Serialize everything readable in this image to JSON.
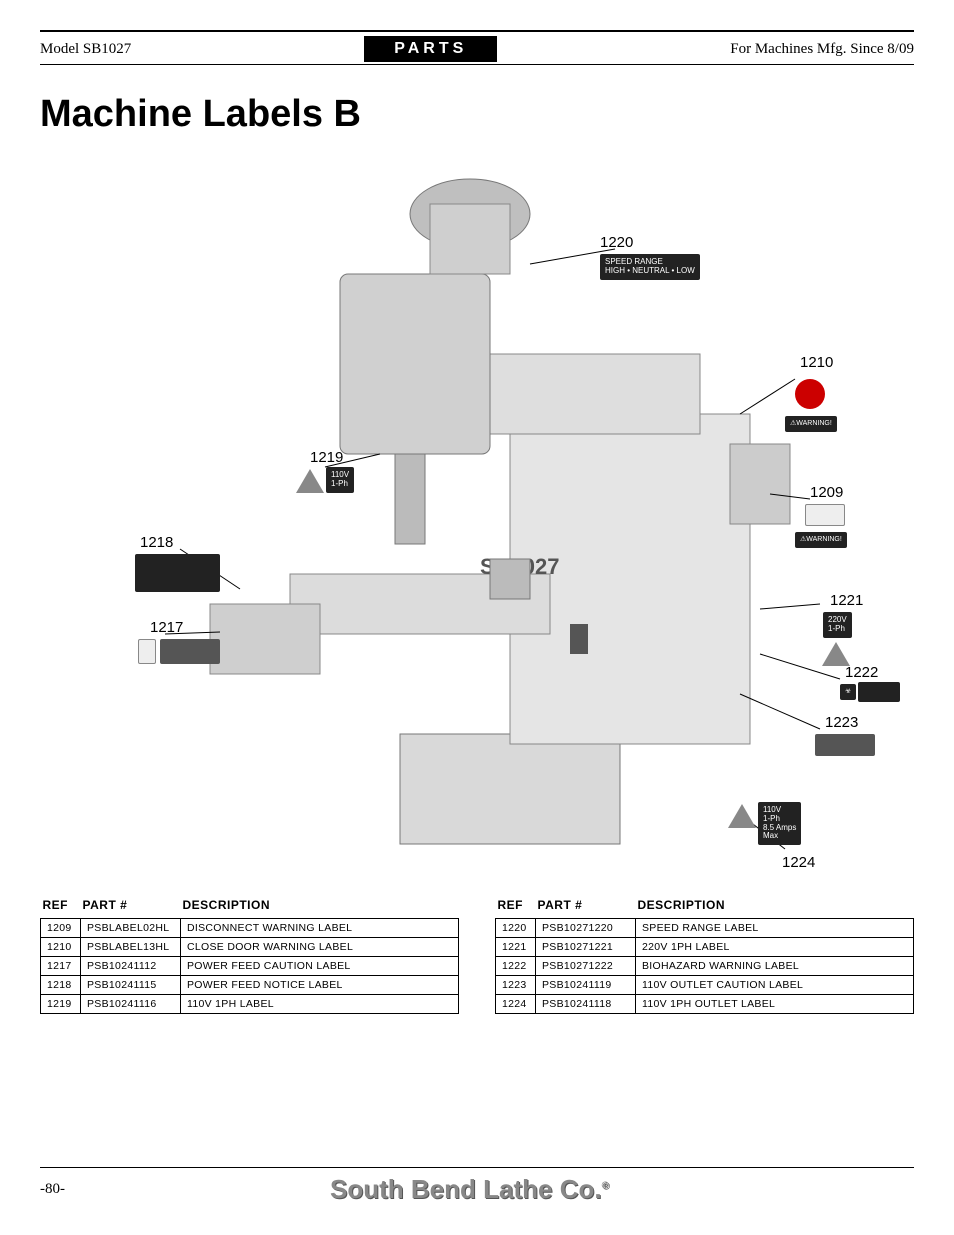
{
  "header": {
    "left": "Model SB1027",
    "center": "PARTS",
    "right": "For Machines Mfg. Since 8/09"
  },
  "title": "Machine Labels B",
  "callouts": {
    "c1220": "1220",
    "c1210": "1210",
    "c1219": "1219",
    "c1209": "1209",
    "c1218": "1218",
    "c1217": "1217",
    "c1221": "1221",
    "c1222": "1222",
    "c1223": "1223",
    "c1224": "1224",
    "machine_model": "SB1027"
  },
  "badges": {
    "b1220": "SPEED RANGE\nHIGH • NEUTRAL • LOW",
    "b1219": "110V\n1-Ph",
    "b1221": "220V\n1-Ph",
    "b1224": "110V\n1-Ph\n8.5 Amps\nMax",
    "warning": "⚠WARNING!"
  },
  "tables": {
    "headers": {
      "ref": "REF",
      "part": "PART #",
      "desc": "DESCRIPTION"
    },
    "left": [
      {
        "ref": "1209",
        "part": "PSBLABEL02HL",
        "desc": "DISCONNECT WARNING LABEL"
      },
      {
        "ref": "1210",
        "part": "PSBLABEL13HL",
        "desc": "CLOSE DOOR WARNING LABEL"
      },
      {
        "ref": "1217",
        "part": "PSB10241112",
        "desc": "POWER FEED CAUTION LABEL"
      },
      {
        "ref": "1218",
        "part": "PSB10241115",
        "desc": "POWER FEED NOTICE LABEL"
      },
      {
        "ref": "1219",
        "part": "PSB10241116",
        "desc": "110V 1PH LABEL"
      }
    ],
    "right": [
      {
        "ref": "1220",
        "part": "PSB10271220",
        "desc": "SPEED RANGE LABEL"
      },
      {
        "ref": "1221",
        "part": "PSB10271221",
        "desc": "220V 1PH LABEL"
      },
      {
        "ref": "1222",
        "part": "PSB10271222",
        "desc": "BIOHAZARD WARNING LABEL"
      },
      {
        "ref": "1223",
        "part": "PSB10241119",
        "desc": "110V OUTLET CAUTION LABEL"
      },
      {
        "ref": "1224",
        "part": "PSB10241118",
        "desc": "110V 1PH OUTLET LABEL"
      }
    ]
  },
  "footer": {
    "page": "-80-",
    "brand": "South Bend Lathe Co."
  },
  "style": {
    "page_bg": "#ffffff",
    "rule_color": "#000000",
    "badge_bg": "#222222",
    "footer_logo_color": "#888888"
  }
}
